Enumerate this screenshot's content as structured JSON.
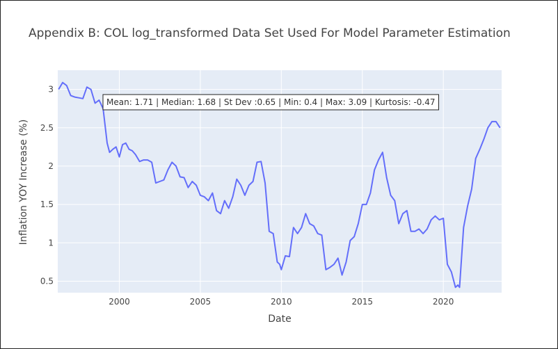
{
  "chart_data": {
    "type": "line",
    "title": "Appendix B: COL log_transformed Data Set Used For Model Parameter Estimation",
    "xlabel": "Date",
    "ylabel": "Inflation YOY Increase (%)",
    "xlim": [
      1996.2,
      2023.6
    ],
    "ylim": [
      0.35,
      3.25
    ],
    "x_ticks": [
      2000,
      2005,
      2010,
      2015,
      2020
    ],
    "x_tick_labels": [
      "2000",
      "2005",
      "2010",
      "2015",
      "2020"
    ],
    "y_ticks": [
      0.5,
      1,
      1.5,
      2,
      2.5,
      3
    ],
    "y_tick_labels": [
      "0.5",
      "1",
      "1.5",
      "2",
      "2.5",
      "3"
    ],
    "grid": true,
    "legend": "none",
    "annotation": "Mean: 1.71 | Median: 1.68 | St Dev :0.65 | Min: 0.4 | Max: 3.09 | Kurtosis: -0.47",
    "colors": {
      "line": "#636efa",
      "plot_bg": "#e5ecf6",
      "grid": "#ffffff"
    },
    "series": [
      {
        "x": [
          1996.25,
          1996.5,
          1996.75,
          1997.0,
          1997.25,
          1997.5,
          1997.75,
          1998.0,
          1998.25,
          1998.5,
          1998.75,
          1999.0,
          1999.25,
          1999.4,
          1999.6,
          1999.8,
          2000.0,
          2000.2,
          2000.4,
          2000.6,
          2000.8,
          2001.0,
          2001.25,
          2001.5,
          2001.75,
          2002.0,
          2002.25,
          2002.5,
          2002.75,
          2003.0,
          2003.25,
          2003.5,
          2003.75,
          2004.0,
          2004.25,
          2004.5,
          2004.75,
          2005.0,
          2005.25,
          2005.5,
          2005.75,
          2006.0,
          2006.25,
          2006.5,
          2006.75,
          2007.0,
          2007.25,
          2007.5,
          2007.75,
          2008.0,
          2008.25,
          2008.5,
          2008.75,
          2009.0,
          2009.25,
          2009.5,
          2009.75,
          2009.9,
          2010.0,
          2010.25,
          2010.5,
          2010.75,
          2011.0,
          2011.25,
          2011.5,
          2011.75,
          2012.0,
          2012.25,
          2012.5,
          2012.75,
          2013.0,
          2013.25,
          2013.5,
          2013.75,
          2014.0,
          2014.25,
          2014.5,
          2014.75,
          2015.0,
          2015.25,
          2015.5,
          2015.75,
          2016.0,
          2016.25,
          2016.5,
          2016.75,
          2017.0,
          2017.25,
          2017.5,
          2017.75,
          2018.0,
          2018.25,
          2018.5,
          2018.75,
          2019.0,
          2019.25,
          2019.5,
          2019.75,
          2020.0,
          2020.25,
          2020.5,
          2020.75,
          2020.9,
          2021.0,
          2021.25,
          2021.5,
          2021.75,
          2022.0,
          2022.25,
          2022.5,
          2022.75,
          2023.0,
          2023.25,
          2023.5
        ],
        "y": [
          3.0,
          3.09,
          3.05,
          2.92,
          2.9,
          2.89,
          2.88,
          3.03,
          3.0,
          2.82,
          2.86,
          2.75,
          2.3,
          2.18,
          2.22,
          2.25,
          2.12,
          2.28,
          2.3,
          2.22,
          2.2,
          2.15,
          2.06,
          2.08,
          2.08,
          2.05,
          1.78,
          1.8,
          1.82,
          1.95,
          2.05,
          2.0,
          1.86,
          1.85,
          1.72,
          1.8,
          1.75,
          1.62,
          1.6,
          1.55,
          1.65,
          1.42,
          1.38,
          1.55,
          1.45,
          1.6,
          1.83,
          1.75,
          1.62,
          1.75,
          1.8,
          2.05,
          2.06,
          1.78,
          1.15,
          1.12,
          0.75,
          0.72,
          0.65,
          0.83,
          0.82,
          1.2,
          1.12,
          1.2,
          1.38,
          1.25,
          1.22,
          1.12,
          1.1,
          0.65,
          0.68,
          0.72,
          0.8,
          0.58,
          0.75,
          1.03,
          1.08,
          1.25,
          1.5,
          1.5,
          1.65,
          1.95,
          2.08,
          2.18,
          1.85,
          1.62,
          1.55,
          1.25,
          1.38,
          1.42,
          1.15,
          1.15,
          1.18,
          1.12,
          1.18,
          1.3,
          1.35,
          1.3,
          1.32,
          0.72,
          0.62,
          0.42,
          0.45,
          0.42,
          1.2,
          1.48,
          1.7,
          2.1,
          2.22,
          2.35,
          2.5,
          2.58,
          2.58,
          2.5
        ]
      }
    ]
  }
}
